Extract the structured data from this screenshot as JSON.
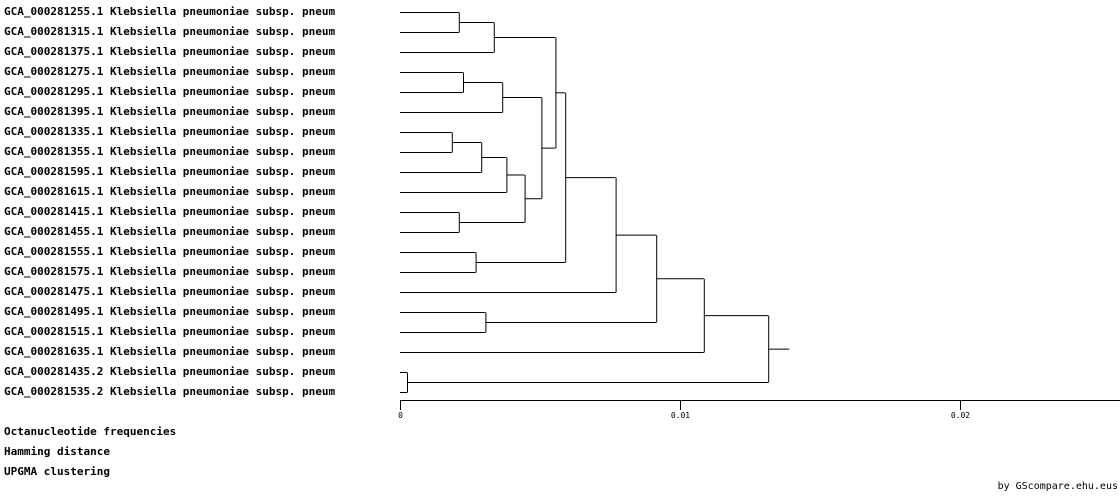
{
  "leaves": [
    "GCA_000281255.1 Klebsiella pneumoniae subsp. pneum",
    "GCA_000281315.1 Klebsiella pneumoniae subsp. pneum",
    "GCA_000281375.1 Klebsiella pneumoniae subsp. pneum",
    "GCA_000281275.1 Klebsiella pneumoniae subsp. pneum",
    "GCA_000281295.1 Klebsiella pneumoniae subsp. pneum",
    "GCA_000281395.1 Klebsiella pneumoniae subsp. pneum",
    "GCA_000281335.1 Klebsiella pneumoniae subsp. pneum",
    "GCA_000281355.1 Klebsiella pneumoniae subsp. pneum",
    "GCA_000281595.1 Klebsiella pneumoniae subsp. pneum",
    "GCA_000281615.1 Klebsiella pneumoniae subsp. pneum",
    "GCA_000281415.1 Klebsiella pneumoniae subsp. pneum",
    "GCA_000281455.1 Klebsiella pneumoniae subsp. pneum",
    "GCA_000281555.1 Klebsiella pneumoniae subsp. pneum",
    "GCA_000281575.1 Klebsiella pneumoniae subsp. pneum",
    "GCA_000281475.1 Klebsiella pneumoniae subsp. pneum",
    "GCA_000281495.1 Klebsiella pneumoniae subsp. pneum",
    "GCA_000281515.1 Klebsiella pneumoniae subsp. pneum",
    "GCA_000281635.1 Klebsiella pneumoniae subsp. pneum",
    "GCA_000281435.2 Klebsiella pneumoniae subsp. pneum",
    "GCA_000281535.2 Klebsiella pneumoniae subsp. pneum"
  ],
  "tree": {
    "merges": [
      {
        "id": "n0",
        "children": [
          "L0",
          "L1"
        ],
        "distance": 0.0021
      },
      {
        "id": "n1",
        "children": [
          "n0",
          "L2"
        ],
        "distance": 0.00335
      },
      {
        "id": "n2",
        "children": [
          "L3",
          "L4"
        ],
        "distance": 0.00225
      },
      {
        "id": "n3",
        "children": [
          "n2",
          "L5"
        ],
        "distance": 0.00365
      },
      {
        "id": "n4",
        "children": [
          "L6",
          "L7"
        ],
        "distance": 0.00185
      },
      {
        "id": "n5",
        "children": [
          "n4",
          "L8"
        ],
        "distance": 0.0029
      },
      {
        "id": "n6",
        "children": [
          "n5",
          "L9"
        ],
        "distance": 0.0038
      },
      {
        "id": "n7",
        "children": [
          "L10",
          "L11"
        ],
        "distance": 0.0021
      },
      {
        "id": "n8",
        "children": [
          "n6",
          "n7"
        ],
        "distance": 0.00445
      },
      {
        "id": "n9",
        "children": [
          "n3",
          "n8"
        ],
        "distance": 0.00505
      },
      {
        "id": "n10",
        "children": [
          "n1",
          "n9"
        ],
        "distance": 0.00555
      },
      {
        "id": "n11",
        "children": [
          "L12",
          "L13"
        ],
        "distance": 0.0027
      },
      {
        "id": "n12",
        "children": [
          "n10",
          "n11"
        ],
        "distance": 0.0059
      },
      {
        "id": "n13",
        "children": [
          "n12",
          "L14"
        ],
        "distance": 0.0077
      },
      {
        "id": "n14",
        "children": [
          "L15",
          "L16"
        ],
        "distance": 0.00305
      },
      {
        "id": "n15",
        "children": [
          "n13",
          "n14"
        ],
        "distance": 0.00915
      },
      {
        "id": "n16",
        "children": [
          "n15",
          "L17"
        ],
        "distance": 0.01085
      },
      {
        "id": "n17",
        "children": [
          "L18",
          "L19"
        ],
        "distance": 0.00025
      },
      {
        "id": "n18",
        "children": [
          "n16",
          "n17"
        ],
        "distance": 0.01315
      }
    ],
    "root_stub": 0.00075
  },
  "axis": {
    "ticks": [
      {
        "value": 0,
        "label": "0"
      },
      {
        "value": 0.01,
        "label": "0.01"
      },
      {
        "value": 0.02,
        "label": "0.02"
      }
    ],
    "max": 0.026
  },
  "footer": [
    "Octanucleotide frequencies",
    "Hamming distance",
    "UPGMA clustering"
  ],
  "credit": "by GScompare.ehu.eus"
}
